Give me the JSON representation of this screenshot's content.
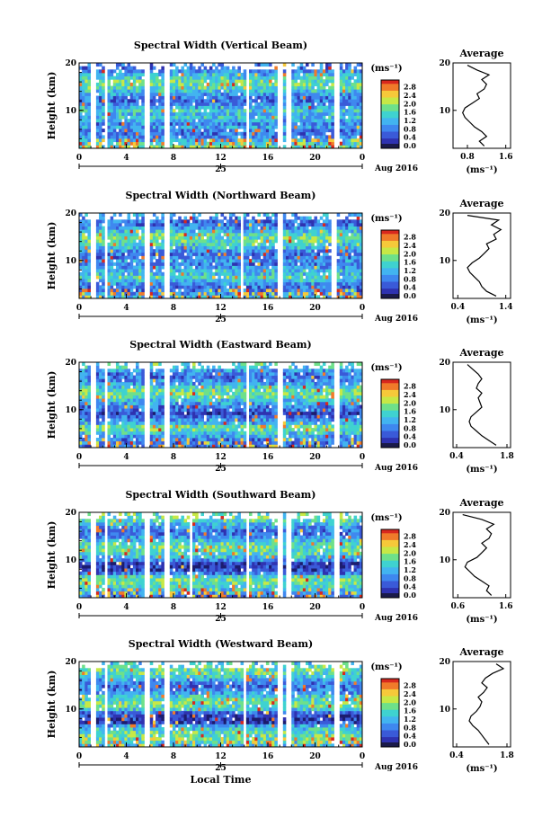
{
  "chart_data": [
    {
      "type": "heatmap",
      "title": "Spectral Width (Vertical Beam)",
      "ylabel": "Height (km)",
      "x_ticks": [
        "0",
        "4",
        "8",
        "12",
        "16",
        "20",
        "0"
      ],
      "y_ticks": [
        "20",
        "10"
      ],
      "day_label": "25",
      "date_label": "Aug 2016",
      "xlim": [
        0,
        24
      ],
      "ylim": [
        2,
        20
      ],
      "colorbar": {
        "unit": "(ms⁻¹)",
        "ticks": [
          "2.8",
          "2.4",
          "2.0",
          "1.6",
          "1.2",
          "0.8",
          "0.4",
          "0.0"
        ],
        "range": [
          0,
          3.0
        ]
      },
      "data_gaps_hours": [
        [
          0.9,
          1.4
        ],
        [
          2.1,
          2.5
        ],
        [
          5.6,
          6.0
        ],
        [
          7.2,
          7.6
        ],
        [
          14.1,
          14.5
        ],
        [
          16.9,
          17.2
        ],
        [
          17.6,
          18.0
        ],
        [
          21.6,
          22.1
        ]
      ],
      "average_profile": {
        "title": "Average",
        "xlabel": "(ms⁻¹)",
        "x_ticks": [
          "0.8",
          "1.6"
        ],
        "y_ticks": [
          "20",
          "10"
        ],
        "xlim": [
          0.5,
          1.7
        ],
        "ylim": [
          2,
          20
        ],
        "height_km": [
          2.5,
          3.5,
          4.5,
          5.5,
          6.5,
          7.5,
          8.5,
          9.5,
          10.5,
          11.5,
          12.5,
          13.5,
          14.5,
          15.5,
          16.5,
          17.5,
          18.5,
          19.5
        ],
        "width_ms": [
          1.15,
          1.05,
          1.2,
          1.1,
          0.95,
          0.85,
          0.75,
          0.7,
          0.75,
          0.9,
          1.05,
          1.0,
          1.15,
          1.2,
          1.1,
          1.25,
          1.0,
          0.8
        ]
      }
    },
    {
      "type": "heatmap",
      "title": "Spectral Width (Northward Beam)",
      "ylabel": "Height (km)",
      "x_ticks": [
        "0",
        "4",
        "8",
        "12",
        "16",
        "20",
        "0"
      ],
      "y_ticks": [
        "20",
        "10"
      ],
      "day_label": "25",
      "date_label": "Aug 2016",
      "xlim": [
        0,
        24
      ],
      "ylim": [
        2,
        20
      ],
      "colorbar": {
        "unit": "(ms⁻¹)",
        "ticks": [
          "2.8",
          "2.4",
          "2.0",
          "1.6",
          "1.2",
          "0.8",
          "0.4",
          "0.0"
        ],
        "range": [
          0,
          3.0
        ]
      },
      "data_gaps_hours": [
        [
          0.9,
          1.4
        ],
        [
          2.1,
          2.5
        ],
        [
          5.6,
          6.0
        ],
        [
          7.2,
          7.6
        ],
        [
          13.7,
          14.0
        ],
        [
          16.9,
          17.2
        ],
        [
          21.4,
          21.8
        ]
      ],
      "average_profile": {
        "title": "Average",
        "xlabel": "(ms⁻¹)",
        "x_ticks": [
          "0.4",
          "1.4"
        ],
        "y_ticks": [
          "20",
          "10"
        ],
        "xlim": [
          0.3,
          1.5
        ],
        "ylim": [
          2,
          20
        ],
        "height_km": [
          2.5,
          3.5,
          4.5,
          5.5,
          6.5,
          7.5,
          8.5,
          9.5,
          10.5,
          11.5,
          12.5,
          13.5,
          14.5,
          15.5,
          16.5,
          17.5,
          18.5,
          19.5
        ],
        "width_ms": [
          1.2,
          1.0,
          0.9,
          0.85,
          0.75,
          0.65,
          0.6,
          0.7,
          0.85,
          0.95,
          1.05,
          1.0,
          1.2,
          1.15,
          1.3,
          1.1,
          1.25,
          0.6
        ]
      }
    },
    {
      "type": "heatmap",
      "title": "Spectral Width (Eastward Beam)",
      "ylabel": "Height (km)",
      "x_ticks": [
        "0",
        "4",
        "8",
        "12",
        "16",
        "20",
        "0"
      ],
      "y_ticks": [
        "20",
        "10"
      ],
      "day_label": "25",
      "date_label": "Aug 2016",
      "xlim": [
        0,
        24
      ],
      "ylim": [
        2,
        20
      ],
      "colorbar": {
        "unit": "(ms⁻¹)",
        "ticks": [
          "2.8",
          "2.4",
          "2.0",
          "1.6",
          "1.2",
          "0.8",
          "0.4",
          "0.0"
        ],
        "range": [
          0,
          3.0
        ]
      },
      "data_gaps_hours": [
        [
          0.9,
          1.4
        ],
        [
          2.1,
          2.5
        ],
        [
          5.6,
          6.0
        ],
        [
          7.2,
          7.6
        ],
        [
          14.1,
          14.5
        ],
        [
          16.9,
          17.2
        ],
        [
          21.6,
          22.1
        ]
      ],
      "average_profile": {
        "title": "Average",
        "xlabel": "(ms⁻¹)",
        "x_ticks": [
          "0.4",
          "1.8"
        ],
        "y_ticks": [
          "20",
          "10"
        ],
        "xlim": [
          0.3,
          1.9
        ],
        "ylim": [
          2,
          20
        ],
        "height_km": [
          2.5,
          3.5,
          4.5,
          5.5,
          6.5,
          7.5,
          8.5,
          9.5,
          10.5,
          11.5,
          12.5,
          13.5,
          14.5,
          15.5,
          16.5,
          17.5,
          18.5,
          19.5
        ],
        "width_ms": [
          1.5,
          1.3,
          1.1,
          0.95,
          0.8,
          0.75,
          0.8,
          0.95,
          1.1,
          1.05,
          1.0,
          1.1,
          0.95,
          1.0,
          1.1,
          1.0,
          0.85,
          0.7
        ]
      }
    },
    {
      "type": "heatmap",
      "title": "Spectral Width (Southward Beam)",
      "ylabel": "Height (km)",
      "x_ticks": [
        "0",
        "4",
        "8",
        "12",
        "16",
        "20",
        "0"
      ],
      "y_ticks": [
        "20",
        "10"
      ],
      "day_label": "25",
      "date_label": "Aug 2016",
      "xlim": [
        0,
        24
      ],
      "ylim": [
        2,
        20
      ],
      "colorbar": {
        "unit": "(ms⁻¹)",
        "ticks": [
          "2.8",
          "2.4",
          "2.0",
          "1.6",
          "1.2",
          "0.8",
          "0.4",
          "0.0"
        ],
        "range": [
          0,
          3.0
        ]
      },
      "data_gaps_hours": [
        [
          0.9,
          1.4
        ],
        [
          2.1,
          2.5
        ],
        [
          5.6,
          6.0
        ],
        [
          7.2,
          7.6
        ],
        [
          9.3,
          9.5
        ],
        [
          14.1,
          14.5
        ],
        [
          16.9,
          17.2
        ],
        [
          17.6,
          18.0
        ],
        [
          21.6,
          22.1
        ]
      ],
      "average_profile": {
        "title": "Average",
        "xlabel": "(ms⁻¹)",
        "x_ticks": [
          "0.6",
          "1.6"
        ],
        "y_ticks": [
          "20",
          "10"
        ],
        "xlim": [
          0.5,
          1.7
        ],
        "ylim": [
          2,
          20
        ],
        "height_km": [
          2.5,
          3.5,
          4.5,
          5.5,
          6.5,
          7.5,
          8.5,
          9.5,
          10.5,
          11.5,
          12.5,
          13.5,
          14.5,
          15.5,
          16.5,
          17.5,
          18.5,
          19.5
        ],
        "width_ms": [
          1.3,
          1.2,
          1.25,
          1.1,
          0.95,
          0.85,
          0.75,
          0.8,
          1.0,
          1.1,
          1.2,
          1.1,
          1.25,
          1.3,
          1.2,
          1.35,
          1.1,
          0.7
        ]
      }
    },
    {
      "type": "heatmap",
      "title": "Spectral Width (Westward Beam)",
      "ylabel": "Height (km)",
      "xlabel": "Local Time",
      "x_ticks": [
        "0",
        "4",
        "8",
        "12",
        "16",
        "20",
        "0"
      ],
      "y_ticks": [
        "20",
        "10"
      ],
      "day_label": "25",
      "date_label": "Aug 2016",
      "xlim": [
        0,
        24
      ],
      "ylim": [
        2,
        20
      ],
      "colorbar": {
        "unit": "(ms⁻¹)",
        "ticks": [
          "2.8",
          "2.4",
          "2.0",
          "1.6",
          "1.2",
          "0.8",
          "0.4",
          "0.0"
        ],
        "range": [
          0,
          3.0
        ]
      },
      "data_gaps_hours": [
        [
          0.9,
          1.4
        ],
        [
          2.1,
          2.5
        ],
        [
          5.6,
          6.0
        ],
        [
          7.2,
          7.6
        ],
        [
          13.9,
          14.2
        ],
        [
          16.9,
          17.2
        ],
        [
          17.6,
          18.0
        ],
        [
          21.6,
          22.1
        ]
      ],
      "average_profile": {
        "title": "Average",
        "xlabel": "(ms⁻¹)",
        "x_ticks": [
          "0.4",
          "1.8"
        ],
        "y_ticks": [
          "20",
          "10"
        ],
        "xlim": [
          0.3,
          1.9
        ],
        "ylim": [
          2,
          20
        ],
        "height_km": [
          2.5,
          3.5,
          4.5,
          5.5,
          6.5,
          7.5,
          8.5,
          9.5,
          10.5,
          11.5,
          12.5,
          13.5,
          14.5,
          15.5,
          16.5,
          17.5,
          18.5,
          19.5
        ],
        "width_ms": [
          1.3,
          1.2,
          1.1,
          1.0,
          0.85,
          0.75,
          0.8,
          0.95,
          1.05,
          1.1,
          1.0,
          1.15,
          1.25,
          1.1,
          1.2,
          1.4,
          1.7,
          1.5
        ]
      }
    }
  ],
  "colors": {
    "colormap": [
      "#1c1c6e",
      "#2f32b0",
      "#3a5ad8",
      "#3f88ef",
      "#42b4f0",
      "#3fd2d0",
      "#6ee08a",
      "#c7e846",
      "#f6c93a",
      "#f07a2a",
      "#d8281e"
    ],
    "line": "#000000"
  }
}
